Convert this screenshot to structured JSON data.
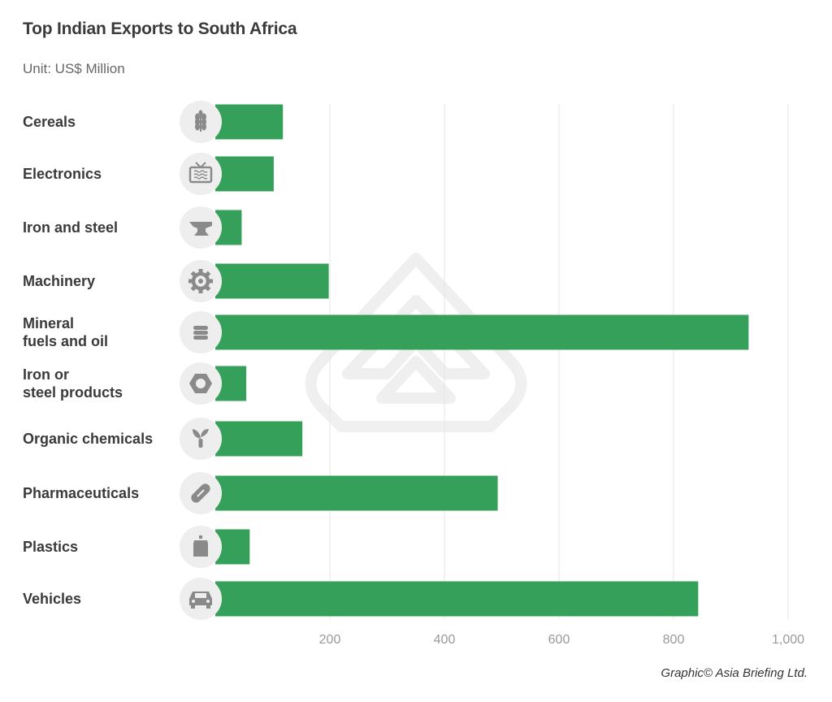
{
  "chart_data": {
    "type": "bar",
    "orientation": "horizontal",
    "title": "Top Indian Exports to South Africa",
    "subtitle": "Unit: US$ Million",
    "categories": [
      [
        "Cereals"
      ],
      [
        "Electronics"
      ],
      [
        "Iron and steel"
      ],
      [
        "Machinery"
      ],
      [
        "Mineral",
        "fuels and oil"
      ],
      [
        "Iron or",
        "steel products"
      ],
      [
        "Organic chemicals"
      ],
      [
        "Pharmaceuticals"
      ],
      [
        "Plastics"
      ],
      [
        "Vehicles"
      ]
    ],
    "values": [
      118,
      102,
      46,
      198,
      931,
      54,
      152,
      493,
      60,
      843
    ],
    "icons": [
      "wheat-icon",
      "tv-icon",
      "anvil-icon",
      "gear-icon",
      "barrel-icon",
      "hex-nut-icon",
      "plant-icon",
      "pill-icon",
      "bottle-icon",
      "car-icon"
    ],
    "xlim": [
      0,
      1000
    ],
    "xticks": [
      200,
      400,
      600,
      800,
      1000
    ],
    "xtick_labels": [
      "200",
      "400",
      "600",
      "800",
      "1,000"
    ],
    "grid": true,
    "bar_color": "#34a05a",
    "icon_bg_color": "#eeeeee",
    "icon_color": "#8a8a8a"
  },
  "credit": "Graphic© Asia Briefing Ltd."
}
